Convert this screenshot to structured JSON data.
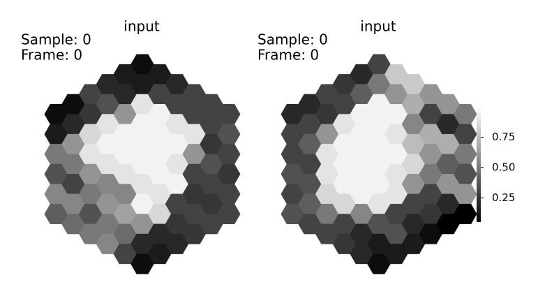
{
  "chart_data": {
    "type": "hexmap",
    "panels": [
      {
        "title": "input",
        "annotations": [
          "Sample: 0",
          "Frame: 0"
        ],
        "values": [
          [
            0.1,
            0.15,
            0.5,
            0.35,
            0.55,
            0.4
          ],
          [
            0.1,
            0.2,
            0.6,
            0.5,
            0.3,
            0.55,
            0.45
          ],
          [
            0.3,
            0.25,
            0.85,
            0.9,
            0.6,
            0.5,
            0.35,
            0.5
          ],
          [
            0.2,
            0.35,
            0.9,
            0.95,
            0.9,
            0.55,
            0.6,
            0.5,
            0.55
          ],
          [
            0.15,
            0.2,
            0.6,
            0.95,
            0.95,
            0.9,
            0.55,
            0.65,
            0.45,
            0.3
          ],
          [
            0.1,
            0.15,
            0.9,
            0.95,
            0.95,
            0.95,
            0.9,
            0.95,
            0.6,
            0.2,
            0.1
          ],
          [
            0.15,
            0.3,
            0.95,
            0.95,
            0.95,
            0.95,
            0.9,
            0.85,
            0.2,
            0.15
          ],
          [
            0.2,
            0.3,
            0.9,
            0.95,
            0.9,
            0.95,
            0.3,
            0.25,
            0.2
          ],
          [
            0.3,
            0.3,
            0.9,
            0.6,
            0.3,
            0.25,
            0.3,
            0.25
          ],
          [
            0.3,
            0.3,
            0.25,
            0.35,
            0.3,
            0.25,
            0.3
          ],
          [
            0.3,
            0.35,
            0.3,
            0.25,
            0.3,
            0.3
          ]
        ]
      },
      {
        "title": "input",
        "annotations": [
          "Sample: 0",
          "Frame: 0"
        ],
        "values": [
          [
            0.2,
            0.3,
            0.3,
            0.35,
            0.3,
            0.35
          ],
          [
            0.2,
            0.3,
            0.4,
            0.3,
            0.35,
            0.4,
            0.3
          ],
          [
            0.3,
            0.25,
            0.6,
            0.9,
            0.9,
            0.85,
            0.5,
            0.3
          ],
          [
            0.25,
            0.3,
            0.9,
            0.95,
            0.95,
            0.95,
            0.85,
            0.3,
            0.25
          ],
          [
            0.2,
            0.4,
            0.95,
            0.95,
            0.95,
            0.95,
            0.95,
            0.55,
            0.2,
            0.2
          ],
          [
            0.3,
            0.5,
            0.95,
            0.95,
            0.95,
            0.95,
            0.95,
            0.9,
            0.35,
            0.15,
            0.1
          ],
          [
            0.8,
            0.6,
            0.95,
            0.9,
            0.95,
            0.9,
            0.9,
            0.3,
            0.35,
            0.15
          ],
          [
            0.8,
            0.7,
            0.55,
            0.75,
            0.85,
            0.6,
            0.3,
            0.2,
            0.15
          ],
          [
            0.6,
            0.3,
            0.7,
            0.6,
            0.5,
            0.3,
            0.25,
            0.1
          ],
          [
            0.6,
            0.2,
            0.7,
            0.4,
            0.6,
            0.2,
            0.05
          ],
          [
            0.5,
            0.3,
            0.5,
            0.35,
            0.6,
            0.05
          ]
        ]
      }
    ],
    "colormap": "gray",
    "colorbar": {
      "ylim": [
        0.05,
        1.0
      ],
      "yticks": [
        0.75,
        {
          "value": 0.5,
          "label": "0.50"
        },
        0.25
      ]
    }
  }
}
